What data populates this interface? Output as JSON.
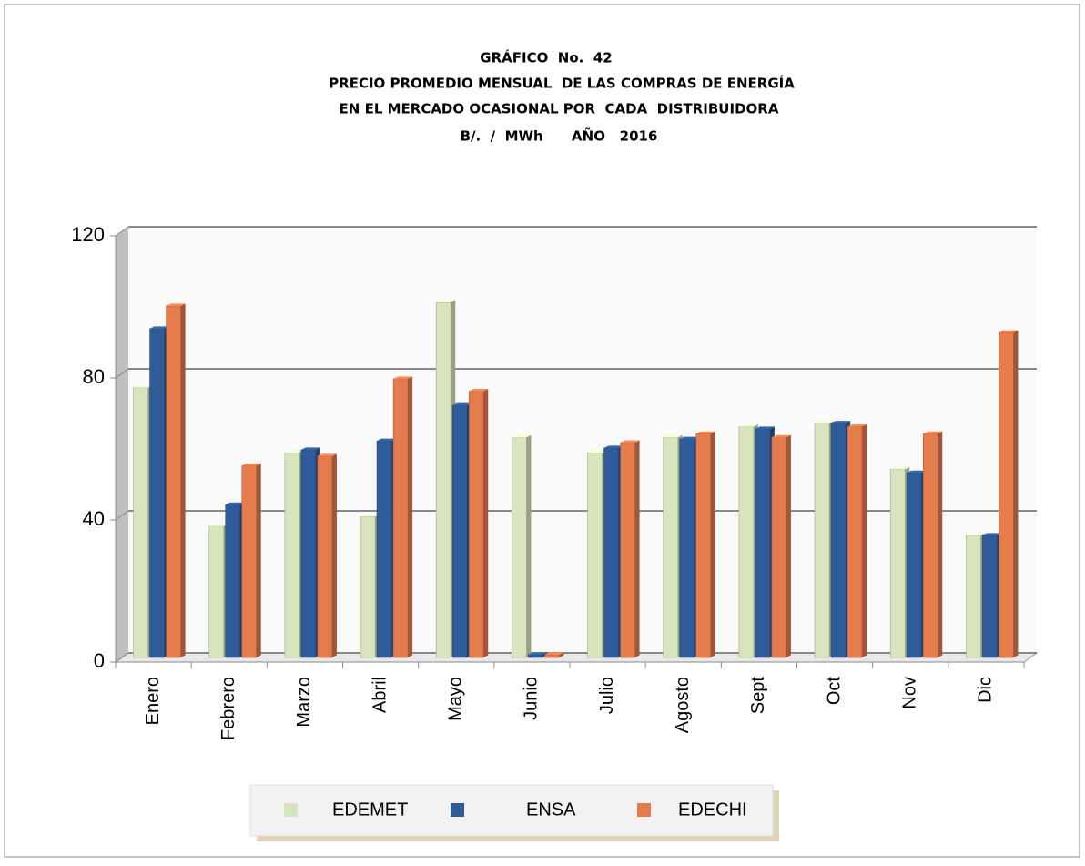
{
  "chart_data": {
    "type": "bar",
    "title": [
      "GRÁFICO  No.  42",
      "PRECIO PROMEDIO MENSUAL  DE LAS COMPRAS DE ENERGÍA",
      "EN EL MERCADO OCASIONAL POR  CADA  DISTRIBUIDORA",
      "B/.  /  MWh      AÑO   2016"
    ],
    "categories": [
      "Enero",
      "Febrero",
      "Marzo",
      "Abril",
      "Mayo",
      "Junio",
      "Julio",
      "Agosto",
      "Sept",
      "Oct",
      "Nov",
      "Dic"
    ],
    "series": [
      {
        "name": "EDEMET",
        "color": "#d7e4bd",
        "values": [
          76,
          37,
          57.7,
          39.7,
          100,
          62,
          57.7,
          62,
          65,
          66,
          53,
          34.4
        ]
      },
      {
        "name": "ENSA",
        "color": "#2f5c99",
        "values": [
          92.6,
          43,
          58.5,
          61,
          71,
          0.8,
          59,
          61.5,
          64.4,
          66,
          52,
          34.4
        ]
      },
      {
        "name": "EDECHI",
        "color": "#e47c4e",
        "values": [
          99,
          54,
          56.7,
          78.5,
          75,
          0.8,
          60.5,
          63,
          62,
          65,
          63,
          91.5
        ]
      }
    ],
    "ylim": [
      0,
      120
    ],
    "yticks": [
      0,
      40,
      80,
      120
    ],
    "grid": true,
    "legend": "bottom"
  }
}
